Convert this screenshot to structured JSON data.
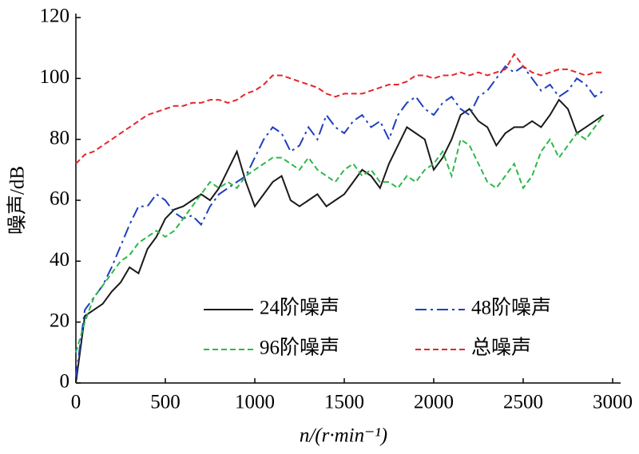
{
  "chart_data": {
    "type": "line",
    "x_label": "n/(r·min⁻¹)",
    "y_label": "噪声/dB",
    "xlim": [
      0,
      3000
    ],
    "xticks": [
      0,
      500,
      1000,
      1500,
      2000,
      2500,
      3000
    ],
    "ylim": [
      0,
      120
    ],
    "yticks": [
      0,
      20,
      40,
      60,
      80,
      100,
      120
    ],
    "x": [
      0,
      50,
      100,
      150,
      200,
      250,
      300,
      350,
      400,
      450,
      500,
      550,
      600,
      650,
      700,
      750,
      800,
      850,
      900,
      950,
      1000,
      1050,
      1100,
      1150,
      1200,
      1250,
      1300,
      1350,
      1400,
      1450,
      1500,
      1550,
      1600,
      1650,
      1700,
      1750,
      1800,
      1850,
      1900,
      1950,
      2000,
      2050,
      2100,
      2150,
      2200,
      2250,
      2300,
      2350,
      2400,
      2450,
      2500,
      2550,
      2600,
      2650,
      2700,
      2750,
      2800,
      2850,
      2900,
      2950
    ],
    "series": [
      {
        "name": "24阶噪声",
        "color": "#1a1a1a",
        "dash": "solid",
        "values": [
          0,
          22,
          24,
          26,
          30,
          33,
          38,
          36,
          44,
          48,
          54,
          57,
          58,
          60,
          62,
          60,
          64,
          70,
          76,
          66,
          58,
          62,
          66,
          68,
          60,
          58,
          60,
          62,
          58,
          60,
          62,
          66,
          70,
          68,
          64,
          72,
          78,
          84,
          82,
          80,
          70,
          74,
          80,
          88,
          90,
          86,
          84,
          78,
          82,
          84,
          84,
          86,
          84,
          88,
          93,
          90,
          82,
          84,
          86,
          88
        ]
      },
      {
        "name": "48阶噪声",
        "color": "#1f3fbf",
        "dash": "dashdot",
        "values": [
          2,
          24,
          28,
          32,
          38,
          45,
          52,
          58,
          58,
          62,
          60,
          56,
          54,
          55,
          52,
          58,
          62,
          64,
          66,
          68,
          74,
          80,
          84,
          82,
          76,
          78,
          84,
          80,
          88,
          84,
          82,
          86,
          88,
          84,
          86,
          80,
          88,
          92,
          94,
          90,
          88,
          92,
          94,
          90,
          88,
          94,
          96,
          100,
          104,
          102,
          104,
          100,
          96,
          98,
          94,
          96,
          100,
          98,
          94,
          96
        ]
      },
      {
        "name": "96阶噪声",
        "color": "#2db84a",
        "dash": "dashed",
        "values": [
          10,
          20,
          28,
          32,
          36,
          40,
          42,
          46,
          48,
          50,
          48,
          50,
          54,
          58,
          62,
          66,
          64,
          66,
          64,
          68,
          70,
          72,
          74,
          74,
          72,
          70,
          74,
          70,
          68,
          66,
          70,
          72,
          68,
          70,
          66,
          66,
          64,
          68,
          66,
          70,
          72,
          76,
          68,
          80,
          78,
          72,
          66,
          64,
          68,
          72,
          64,
          68,
          76,
          80,
          74,
          78,
          82,
          80,
          84,
          88
        ]
      },
      {
        "name": "总噪声",
        "color": "#e8242a",
        "dash": "dashed",
        "values": [
          72,
          75,
          76,
          78,
          80,
          82,
          84,
          86,
          88,
          89,
          90,
          91,
          91,
          92,
          92,
          93,
          93,
          92,
          93,
          95,
          96,
          98,
          101,
          101,
          100,
          99,
          98,
          97,
          95,
          94,
          95,
          95,
          95,
          96,
          97,
          98,
          98,
          99,
          101,
          101,
          100,
          101,
          101,
          102,
          101,
          102,
          101,
          102,
          103,
          108,
          104,
          102,
          101,
          102,
          103,
          103,
          102,
          101,
          102,
          102
        ]
      }
    ]
  }
}
